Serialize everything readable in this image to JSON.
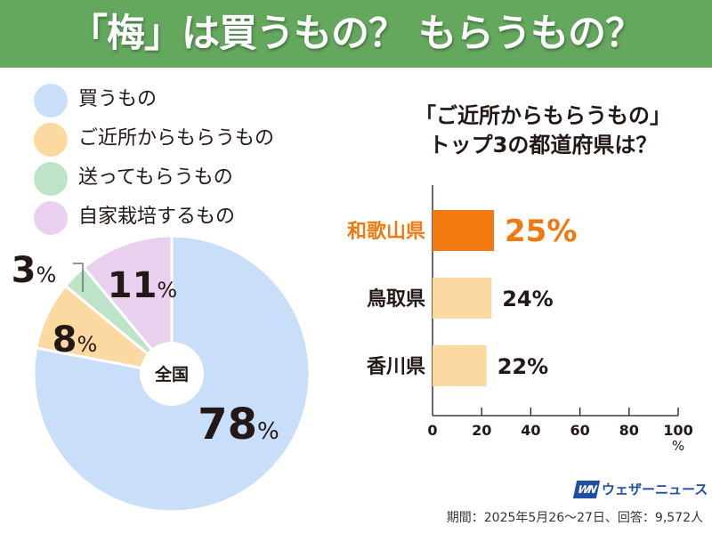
{
  "header": {
    "title": "「梅」は買うもの？ もらうもの？"
  },
  "legend": [
    {
      "label": "買うもの",
      "color": "#c9def8"
    },
    {
      "label": "ご近所からもらうもの",
      "color": "#fdd9a2"
    },
    {
      "label": "送ってもらうもの",
      "color": "#bde4c8"
    },
    {
      "label": "自家栽培するもの",
      "color": "#ead0ef"
    }
  ],
  "chart_data": [
    {
      "type": "pie",
      "title": "",
      "center_label": "全国",
      "unit": "%",
      "categories": [
        "買うもの",
        "ご近所からもらうもの",
        "送ってもらうもの",
        "自家栽培するもの"
      ],
      "values": [
        78,
        8,
        3,
        11
      ],
      "labels": [
        "78",
        "8",
        "3",
        "11"
      ],
      "colors": [
        "#c9def8",
        "#fdd9a2",
        "#bde4c8",
        "#ead0ef"
      ],
      "start": "top",
      "direction": "clockwise"
    },
    {
      "type": "bar",
      "orientation": "horizontal",
      "title": "「ご近所からもらうもの」\nトップ3の都道府県は？",
      "title_lines": [
        "「ご近所からもらうもの」",
        "トップ3の都道府県は？"
      ],
      "categories": [
        "和歌山県",
        "鳥取県",
        "香川県"
      ],
      "values": [
        25,
        24,
        22
      ],
      "value_labels": [
        "25%",
        "24%",
        "22%"
      ],
      "highlight_index": 0,
      "highlight_color": "#f07a10",
      "bar_color": "#fdd9a2",
      "xlim": [
        0,
        100
      ],
      "xticks": [
        0,
        20,
        40,
        60,
        80,
        100
      ],
      "xtick_labels": [
        "0",
        "20",
        "40",
        "60",
        "80",
        "100"
      ],
      "xlabel": "%",
      "grid": false
    }
  ],
  "logo": {
    "mark": "WN",
    "name": "ウェザーニュース"
  },
  "footnote": "期間：2025年5月26～27日、回答：9,572人"
}
